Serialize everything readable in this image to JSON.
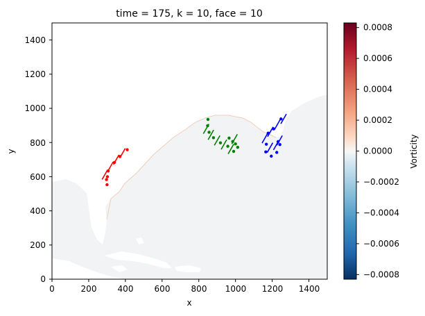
{
  "chart_data": {
    "type": "heatmap",
    "title": "time = 175, k = 10, face = 10",
    "xlabel": "x",
    "ylabel": "y",
    "xlim": [
      0,
      1500
    ],
    "ylim": [
      0,
      1500
    ],
    "xticks": [
      "0",
      "200",
      "400",
      "600",
      "800",
      "1000",
      "1200",
      "1400"
    ],
    "yticks": [
      "0",
      "200",
      "400",
      "600",
      "800",
      "1000",
      "1200",
      "1400"
    ],
    "colorbar": {
      "label": "Vorticity",
      "range": [
        -0.00083,
        0.00083
      ],
      "ticks": [
        "−0.0008",
        "−0.0006",
        "−0.0004",
        "−0.0002",
        "0.0000",
        "0.0002",
        "0.0004",
        "0.0006",
        "0.0008"
      ],
      "tick_values": [
        -0.0008,
        -0.0006,
        -0.0004,
        -0.0002,
        0.0,
        0.0002,
        0.0004,
        0.0006,
        0.0008
      ],
      "colormap": "RdBu_r"
    },
    "colors": {
      "ocean": "#f1f3f4",
      "land": "#ffffff",
      "coast": "#f2c9b4"
    },
    "series": [
      {
        "color": "#ff0000",
        "points": [
          [
            300,
            553
          ],
          [
            297,
            583
          ],
          [
            302,
            600
          ],
          [
            306,
            633
          ],
          [
            340,
            683
          ],
          [
            370,
            718
          ],
          [
            410,
            758
          ]
        ],
        "bars": [
          [
            288,
            612
          ],
          [
            318,
            658
          ],
          [
            350,
            700
          ],
          [
            384,
            737
          ]
        ]
      },
      {
        "color": "#008000",
        "points": [
          [
            850,
            935
          ],
          [
            848,
            898
          ],
          [
            856,
            860
          ],
          [
            880,
            828
          ],
          [
            918,
            798
          ],
          [
            958,
            778
          ],
          [
            990,
            748
          ],
          [
            1012,
            772
          ],
          [
            1000,
            792
          ],
          [
            985,
            806
          ],
          [
            965,
            826
          ]
        ],
        "bars": [
          [
            840,
            880
          ],
          [
            866,
            845
          ],
          [
            900,
            812
          ],
          [
            937,
            788
          ],
          [
            975,
            762
          ],
          [
            995,
            820
          ]
        ]
      },
      {
        "color": "#0000ff",
        "points": [
          [
            1165,
            745
          ],
          [
            1168,
            790
          ],
          [
            1178,
            855
          ],
          [
            1208,
            880
          ],
          [
            1248,
            938
          ],
          [
            1195,
            720
          ],
          [
            1225,
            742
          ],
          [
            1242,
            788
          ],
          [
            1232,
            805
          ]
        ],
        "bars": [
          [
            1160,
            825
          ],
          [
            1190,
            863
          ],
          [
            1228,
            905
          ],
          [
            1262,
            938
          ],
          [
            1188,
            770
          ],
          [
            1222,
            785
          ],
          [
            1240,
            812
          ]
        ]
      }
    ]
  }
}
